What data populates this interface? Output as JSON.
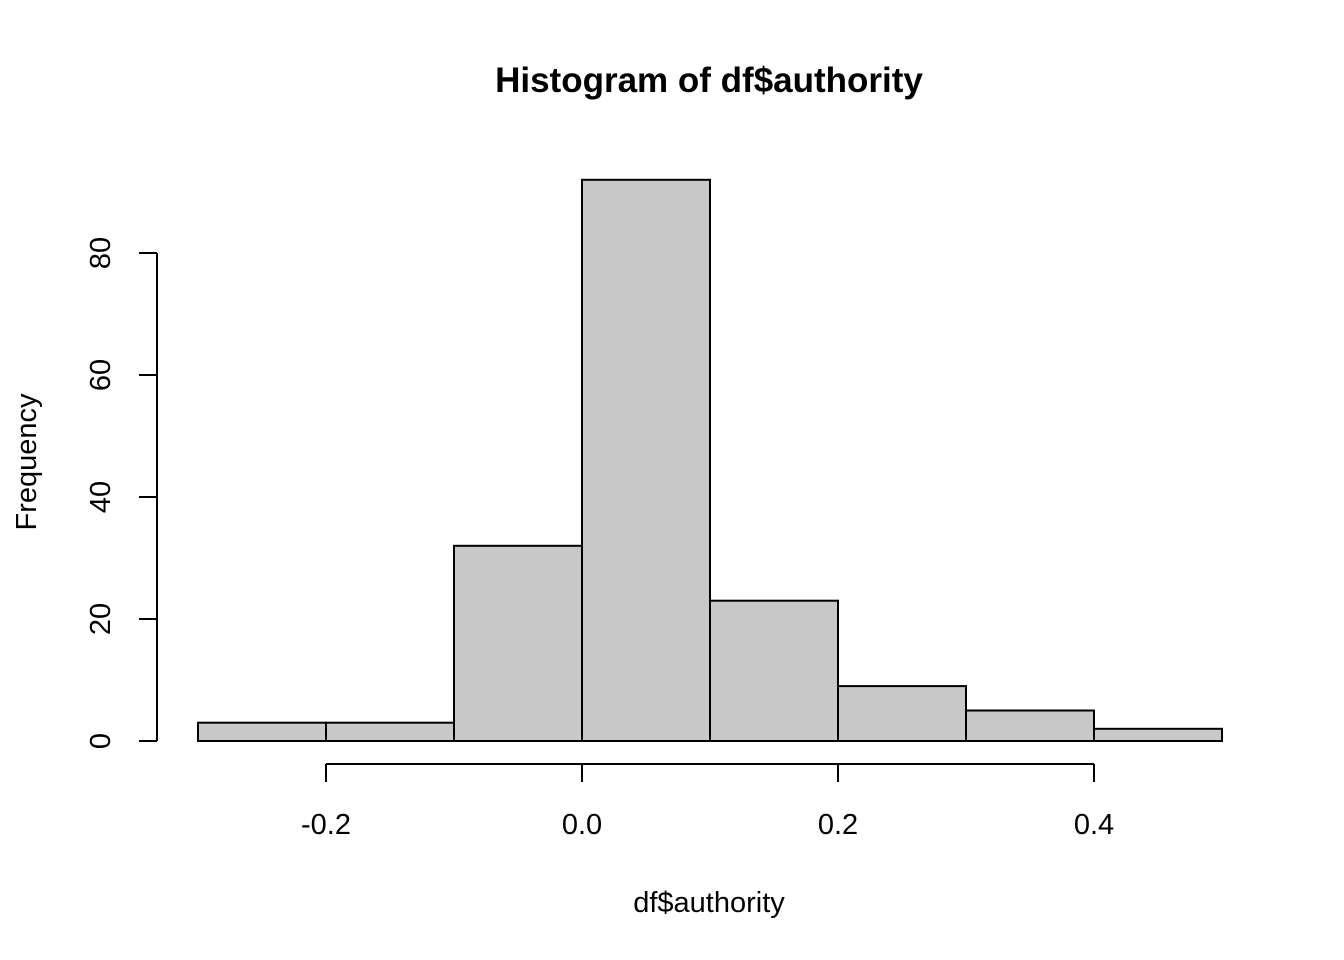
{
  "chart_data": {
    "type": "bar",
    "title": "Histogram of df$authority",
    "xlabel": "df$authority",
    "ylabel": "Frequency",
    "bins": [
      {
        "start": -0.3,
        "end": -0.2,
        "count": 3
      },
      {
        "start": -0.2,
        "end": -0.1,
        "count": 3
      },
      {
        "start": -0.1,
        "end": 0.0,
        "count": 32
      },
      {
        "start": 0.0,
        "end": 0.1,
        "count": 92
      },
      {
        "start": 0.1,
        "end": 0.2,
        "count": 23
      },
      {
        "start": 0.2,
        "end": 0.3,
        "count": 9
      },
      {
        "start": 0.3,
        "end": 0.4,
        "count": 5
      },
      {
        "start": 0.4,
        "end": 0.5,
        "count": 2
      }
    ],
    "xticks": [
      -0.2,
      0.0,
      0.2,
      0.4
    ],
    "xtick_labels": [
      "-0.2",
      "0.0",
      "0.2",
      "0.4"
    ],
    "yticks": [
      0,
      20,
      40,
      60,
      80
    ],
    "ytick_labels": [
      "0",
      "20",
      "40",
      "60",
      "80"
    ],
    "xlim": [
      -0.3,
      0.5
    ],
    "ylim": [
      0,
      92
    ],
    "fill_color": "#c8c8c8",
    "edge_color": "#000000",
    "grid": false
  }
}
